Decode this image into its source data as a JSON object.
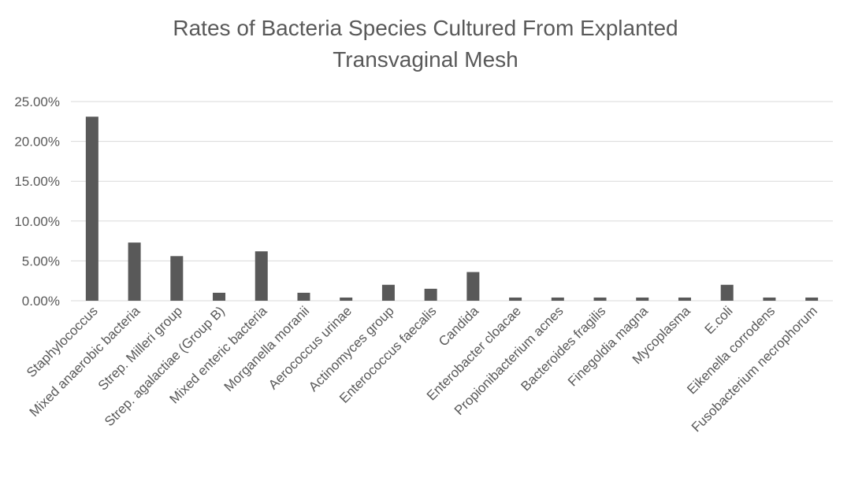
{
  "chart_data": {
    "type": "bar",
    "title_line1": "Rates of Bacteria Species Cultured From Explanted",
    "title_line2": "Transvaginal Mesh",
    "xlabel": "",
    "ylabel": "",
    "ylim": [
      0,
      25
    ],
    "y_ticks": [
      0,
      5,
      10,
      15,
      20,
      25
    ],
    "y_tick_labels": [
      "0.00%",
      "5.00%",
      "10.00%",
      "15.00%",
      "20.00%",
      "25.00%"
    ],
    "grid": true,
    "legend": "none",
    "bar_color": "#595959",
    "grid_color": "#d9d9d9",
    "categories": [
      "Staphylococcus",
      "Mixed anaerobic bacteria",
      "Strep. Milleri group",
      "Strep. agalactiae (Group B)",
      "Mixed enteric bacteria",
      "Morganella moranii",
      "Aerococcus urinae",
      "Actinomyces group",
      "Enterococcus faecalis",
      "Candida",
      "Enterobacter cloacae",
      "Propionibacterium acnes",
      "Bacteroides fragilis",
      "Finegoldia magna",
      "Mycoplasma",
      "E.coli",
      "Eikenella corrodens",
      "Fusobacterium necrophorum"
    ],
    "values": [
      23.1,
      7.3,
      5.6,
      1.0,
      6.2,
      1.0,
      0.4,
      2.0,
      1.5,
      3.6,
      0.4,
      0.4,
      0.4,
      0.4,
      0.4,
      2.0,
      0.4,
      0.4
    ]
  }
}
